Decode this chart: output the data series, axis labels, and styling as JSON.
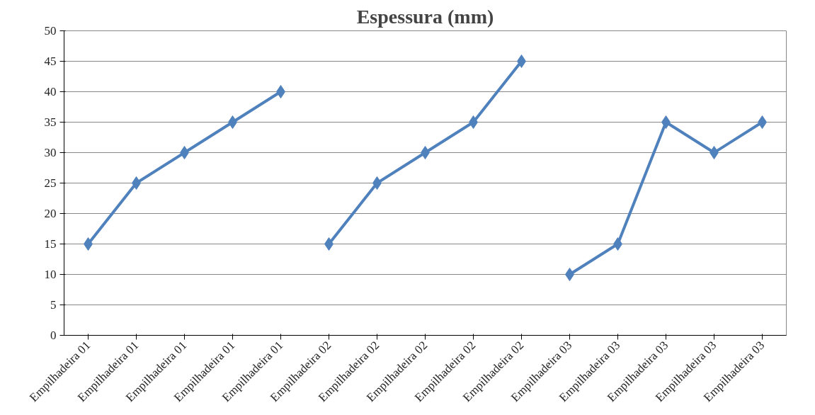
{
  "chart_data": {
    "type": "line",
    "title": "Espessura (mm)",
    "categories": [
      "Empilhadeira 01",
      "Empilhadeira 01",
      "Empilhadeira 01",
      "Empilhadeira 01",
      "Empilhadeira 01",
      "Empilhadeira 02",
      "Empilhadeira 02",
      "Empilhadeira 02",
      "Empilhadeira 02",
      "Empilhadeira 02",
      "Empilhadeira 03",
      "Empilhadeira 03",
      "Empilhadeira 03",
      "Empilhadeira 03",
      "Empilhadeira 03"
    ],
    "series": [
      {
        "color": "#4f81bd",
        "values": [
          15,
          25,
          30,
          35,
          40,
          null,
          null,
          null,
          null,
          null,
          null,
          null,
          null,
          null,
          null
        ]
      },
      {
        "color": "#4f81bd",
        "values": [
          null,
          null,
          null,
          null,
          null,
          15,
          25,
          30,
          35,
          45,
          null,
          null,
          null,
          null,
          null
        ]
      },
      {
        "color": "#4f81bd",
        "values": [
          null,
          null,
          null,
          null,
          null,
          null,
          null,
          null,
          null,
          null,
          10,
          15,
          35,
          30,
          35
        ]
      }
    ],
    "ylim": [
      0,
      50
    ],
    "yticks": [
      0,
      5,
      10,
      15,
      20,
      25,
      30,
      35,
      40,
      45,
      50
    ],
    "grid": "y",
    "marker": "diamond",
    "line_style": "solid"
  }
}
